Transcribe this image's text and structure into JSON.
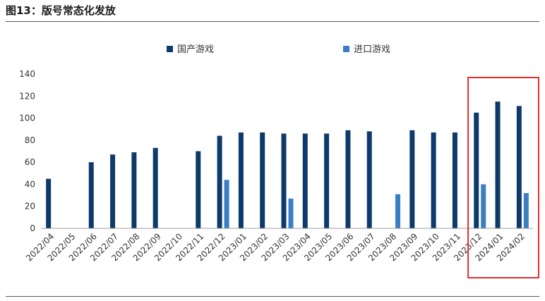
{
  "figure_title": "图13：版号常态化发放",
  "colors": {
    "domestic": "#0d3a6b",
    "imported": "#3b7fc2",
    "axis": "#a0a0a0",
    "highlight_border": "#e03030"
  },
  "chart_data": {
    "type": "bar",
    "categories": [
      "2022/04",
      "2022/05",
      "2022/06",
      "2022/07",
      "2022/08",
      "2022/09",
      "2022/10",
      "2022/11",
      "2022/12",
      "2023/01",
      "2023/02",
      "2023/03",
      "2023/04",
      "2023/05",
      "2023/06",
      "2023/07",
      "2023/08",
      "2023/09",
      "2023/10",
      "2023/11",
      "2023/12",
      "2024/01",
      "2024/02"
    ],
    "series": [
      {
        "name": "国产游戏",
        "values": [
          45,
          0,
          60,
          67,
          69,
          73,
          0,
          70,
          84,
          87,
          87,
          86,
          86,
          86,
          89,
          88,
          0,
          89,
          87,
          87,
          105,
          115,
          111
        ]
      },
      {
        "name": "进口游戏",
        "values": [
          0,
          0,
          0,
          0,
          0,
          0,
          0,
          0,
          44,
          0,
          0,
          27,
          0,
          0,
          0,
          0,
          31,
          0,
          0,
          0,
          40,
          0,
          32
        ]
      }
    ],
    "yticks": [
      0,
      20,
      40,
      60,
      80,
      100,
      120,
      140
    ],
    "ylim": [
      0,
      140
    ],
    "legend_position": "top",
    "highlight_range": [
      "2023/12",
      "2024/02"
    ],
    "grid": false
  }
}
